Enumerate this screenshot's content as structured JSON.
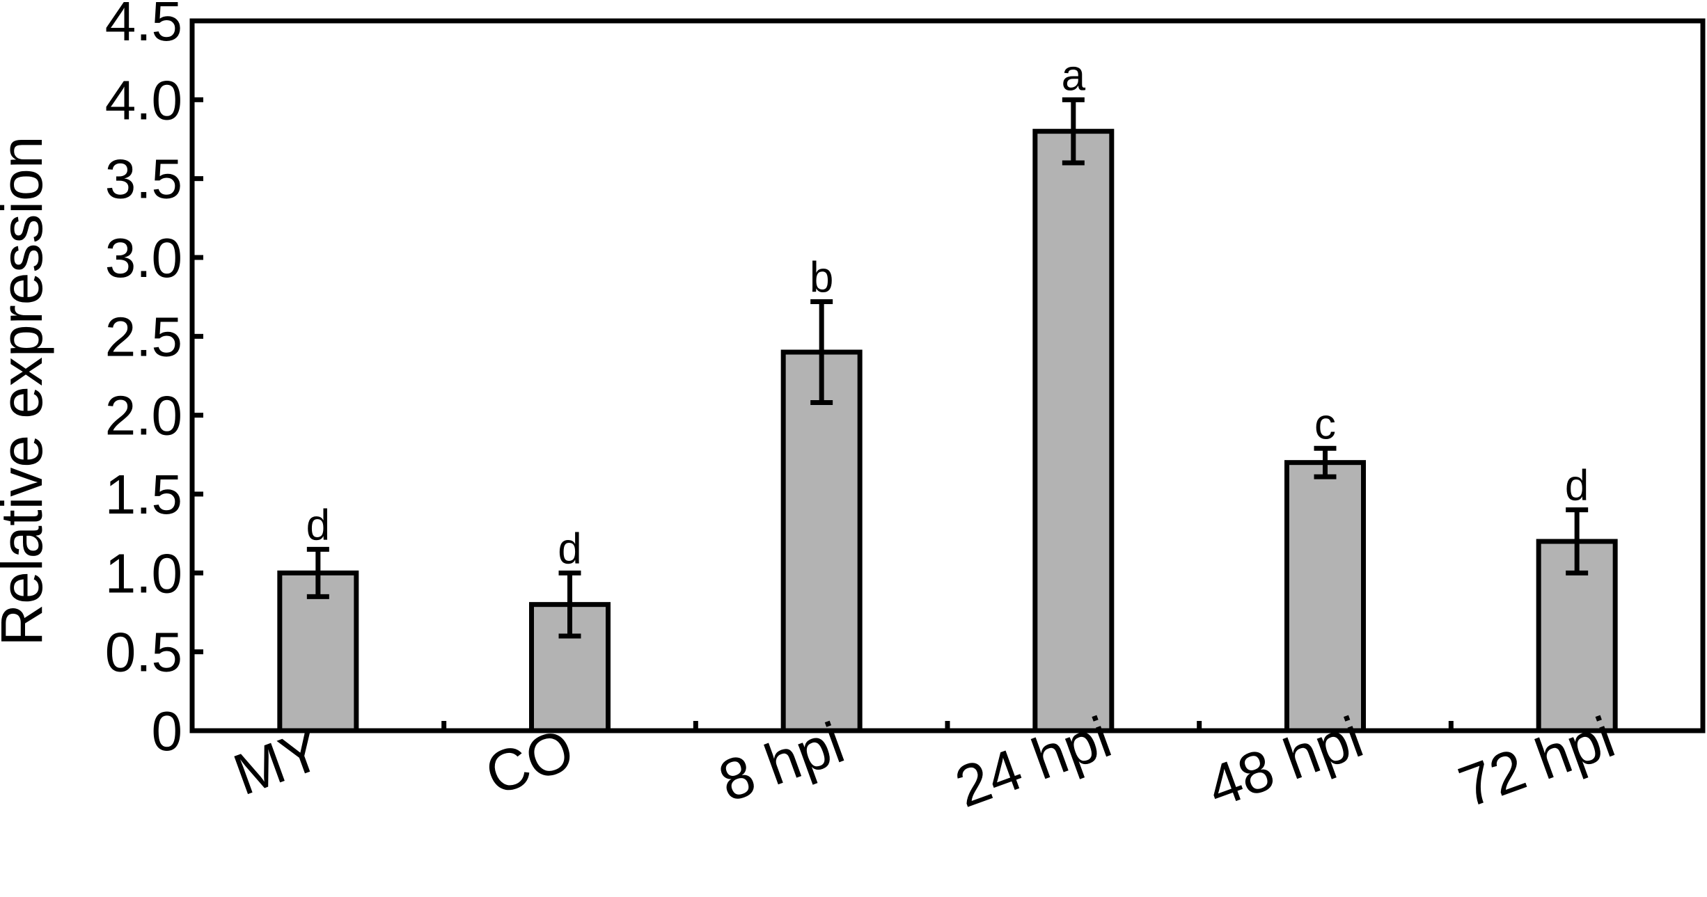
{
  "chart_data": {
    "type": "bar",
    "title": "",
    "xlabel": "",
    "ylabel": "Relative expression",
    "ylim": [
      0,
      4.5
    ],
    "yticks": [
      0,
      0.5,
      1.0,
      1.5,
      2.0,
      2.5,
      3.0,
      3.5,
      4.0,
      4.5
    ],
    "ytick_labels": [
      "0",
      "0.5",
      "1.0",
      "1.5",
      "2.0",
      "2.5",
      "3.0",
      "3.5",
      "4.0",
      "4.5"
    ],
    "categories": [
      "MY",
      "CO",
      "8 hpi",
      "24 hpi",
      "48 hpi",
      "72 hpi"
    ],
    "values": [
      1.0,
      0.8,
      2.4,
      3.8,
      1.7,
      1.2
    ],
    "errors": [
      0.15,
      0.2,
      0.32,
      0.2,
      0.09,
      0.2
    ],
    "significance_letters": [
      "d",
      "d",
      "b",
      "a",
      "c",
      "d"
    ],
    "grid": false,
    "legend": "none",
    "colors": {
      "bar_fill": "#b3b3b3",
      "bar_stroke": "#000000",
      "axis": "#000000"
    }
  }
}
